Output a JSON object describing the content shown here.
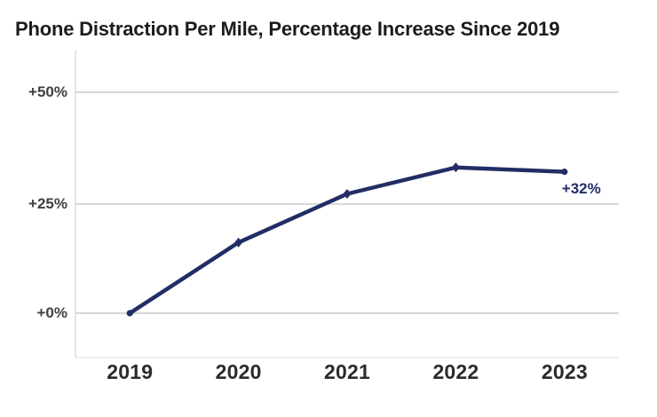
{
  "title": "Phone Distraction Per Mile, Percentage Increase Since 2019",
  "chart_data": {
    "type": "line",
    "title": "Phone Distraction Per Mile, Percentage Increase Since 2019",
    "categories": [
      "2019",
      "2020",
      "2021",
      "2022",
      "2023"
    ],
    "values": [
      0,
      16,
      27,
      33,
      32
    ],
    "xlabel": "",
    "ylabel": "",
    "ylim": [
      -10,
      60
    ],
    "yticks": [
      {
        "label": "+0%",
        "value": 0
      },
      {
        "label": "+25%",
        "value": 25
      },
      {
        "label": "+50%",
        "value": 50
      }
    ],
    "grid": "horizontal",
    "legend": false,
    "annotation": {
      "text": "+32%",
      "attached_to": "2023",
      "value": 32
    }
  },
  "colors": {
    "line": "#222d66",
    "annotation": "#222d66",
    "grid": "#d7d7d7",
    "axis_line": "#e3e3e3",
    "bottom_line": "#ececec",
    "title_text": "#1c1c1c",
    "y_tick_text": "#3f3f3f",
    "x_tick_text": "#2b2b2b",
    "background": "#ffffff"
  }
}
